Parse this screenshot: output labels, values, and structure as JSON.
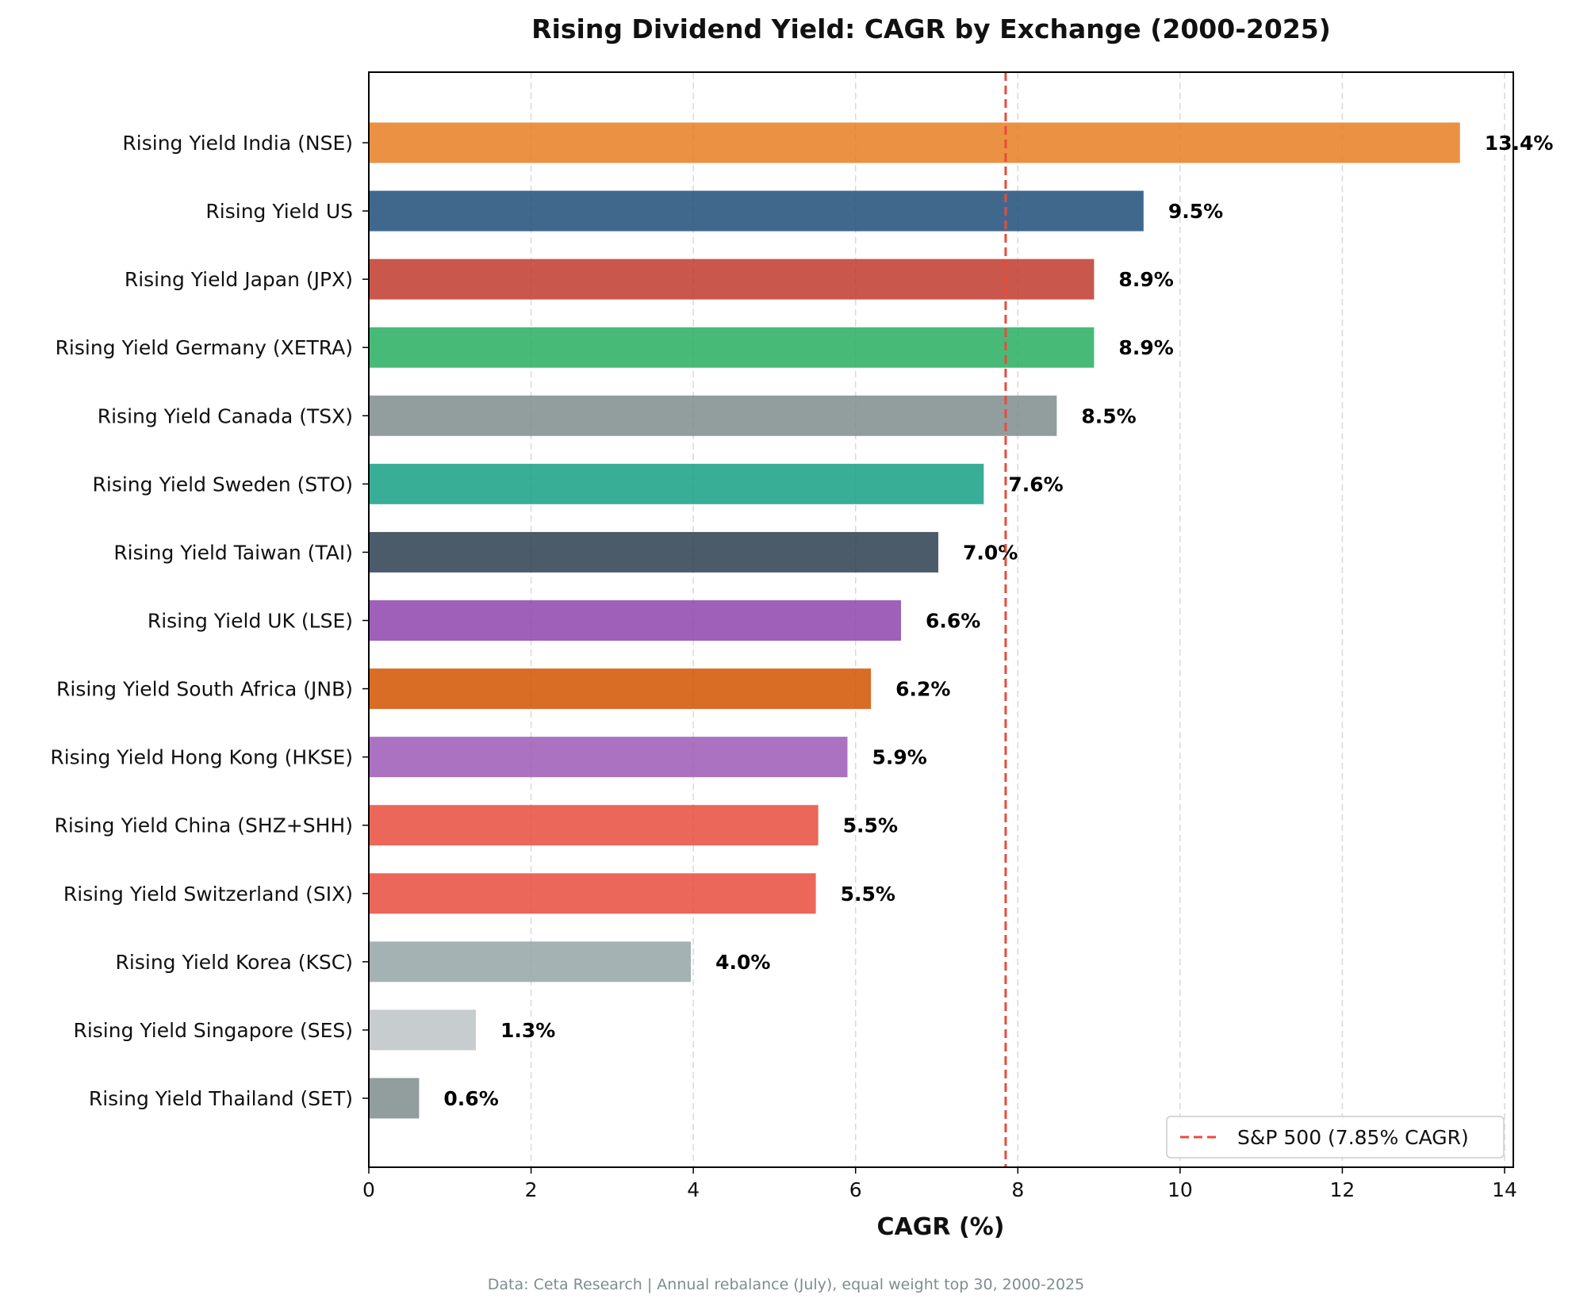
{
  "chart_data": {
    "type": "bar",
    "orientation": "horizontal",
    "title": "Rising Dividend Yield: CAGR by Exchange (2000-2025)",
    "xlabel": "CAGR (%)",
    "ylabel": "",
    "xlim": [
      0,
      14
    ],
    "xticks": [
      0,
      2,
      4,
      6,
      8,
      10,
      12,
      14
    ],
    "grid": "vertical dashed",
    "categories": [
      "Rising Yield India (NSE)",
      "Rising Yield US",
      "Rising Yield Japan (JPX)",
      "Rising Yield Germany (XETRA)",
      "Rising Yield Canada (TSX)",
      "Rising Yield Sweden (STO)",
      "Rising Yield Taiwan (TAI)",
      "Rising Yield UK (LSE)",
      "Rising Yield South Africa (JNB)",
      "Rising Yield Hong Kong (HKSE)",
      "Rising Yield China (SHZ+SHH)",
      "Rising Yield Switzerland (SIX)",
      "Rising Yield Korea (KSC)",
      "Rising Yield Singapore (SES)",
      "Rising Yield Thailand (SET)"
    ],
    "values": [
      13.45,
      9.55,
      8.94,
      8.94,
      8.48,
      7.58,
      7.02,
      6.56,
      6.19,
      5.9,
      5.54,
      5.51,
      3.97,
      1.32,
      0.62
    ],
    "value_labels": [
      "13.4%",
      "9.5%",
      "8.9%",
      "8.9%",
      "8.5%",
      "7.6%",
      "7.0%",
      "6.6%",
      "6.2%",
      "5.9%",
      "5.5%",
      "5.5%",
      "4.0%",
      "1.3%",
      "0.6%"
    ],
    "colors": [
      "#e67e22",
      "#1f4e79",
      "#c0392b",
      "#27ae60",
      "#7f8c8d",
      "#16a085",
      "#2c3e50",
      "#8e44ad",
      "#d35400",
      "#9b59b6",
      "#e74c3c",
      "#e74c3c",
      "#95a5a6",
      "#bdc3c7",
      "#7f8c8d"
    ],
    "bar_opacity": 0.85,
    "reference_line": {
      "value": 7.85,
      "label": "S&P 500 (7.85% CAGR)",
      "color": "#e74c3c",
      "style": "dashed"
    },
    "legend_position": "bottom-right",
    "footnote": "Data: Ceta Research | Annual rebalance (July), equal weight top 30, 2000-2025"
  }
}
